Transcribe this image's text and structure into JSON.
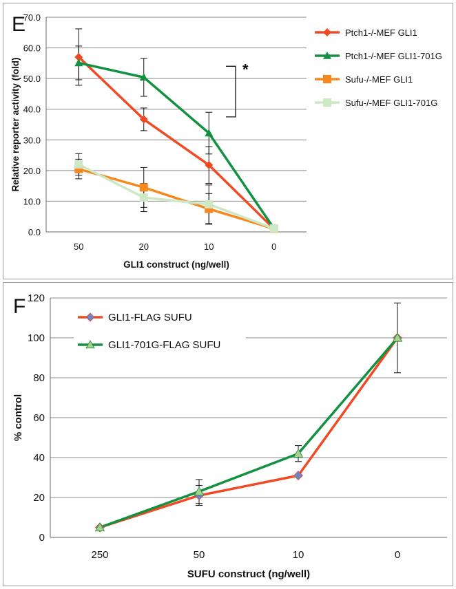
{
  "chart_data": [
    {
      "type": "line",
      "panel_label": "E",
      "xlabel": "GLI1 construct (ng/well)",
      "ylabel": "Relative reporter  activity (fold)",
      "categories": [
        "50",
        "20",
        "10",
        "0"
      ],
      "ylim": [
        0,
        70
      ],
      "yticks": [
        "0.0",
        "10.0",
        "20.0",
        "30.0",
        "40.0",
        "50.0",
        "60.0",
        "70.0"
      ],
      "grid": true,
      "legend_position": "top-right",
      "annotation": "*",
      "series": [
        {
          "name": "Ptch1-/-MEF GLI1",
          "color": "#ef4a23",
          "marker": "diamond",
          "values": [
            57.0,
            36.7,
            21.8,
            1.0
          ],
          "errors": [
            9.2,
            3.7,
            6.0,
            0.5
          ]
        },
        {
          "name": "Ptch1-/-MEF GLI1-701G",
          "color": "#139040",
          "marker": "triangle",
          "values": [
            55.1,
            50.4,
            32.2,
            1.1
          ],
          "errors": [
            5.5,
            6.2,
            6.8,
            0.5
          ]
        },
        {
          "name": "Sufu-/-MEF GLI1",
          "color": "#f7871f",
          "marker": "square",
          "values": [
            20.5,
            14.5,
            7.5,
            1.0
          ],
          "errors": [
            3.2,
            6.5,
            5.0,
            0.4
          ]
        },
        {
          "name": "Sufu-/-MEF GLI1-701G",
          "color": "#cde8c4",
          "marker": "square",
          "values": [
            22.0,
            11.2,
            9.0,
            1.1
          ],
          "errors": [
            3.5,
            4.6,
            6.3,
            0.4
          ]
        }
      ]
    },
    {
      "type": "line",
      "panel_label": "F",
      "xlabel": "SUFU construct (ng/well)",
      "ylabel": "% control",
      "categories": [
        "250",
        "50",
        "10",
        "0"
      ],
      "ylim": [
        0,
        120
      ],
      "yticks": [
        "0",
        "20",
        "40",
        "60",
        "80",
        "100",
        "120"
      ],
      "grid": true,
      "legend_position": "top-left",
      "series": [
        {
          "name": "GLI1-FLAG SUFU",
          "color": "#ef4a23",
          "marker": "diamond",
          "marker_fill": "#6b86c6",
          "values": [
            5,
            21,
            31,
            100
          ],
          "errors": [
            0,
            5,
            0,
            0
          ]
        },
        {
          "name": "GLI1-701G-FLAG SUFU",
          "color": "#139040",
          "marker": "triangle",
          "marker_fill": "#a8d08d",
          "values": [
            5,
            23,
            42,
            100
          ],
          "errors": [
            0,
            6,
            4,
            17.5
          ]
        }
      ]
    }
  ]
}
